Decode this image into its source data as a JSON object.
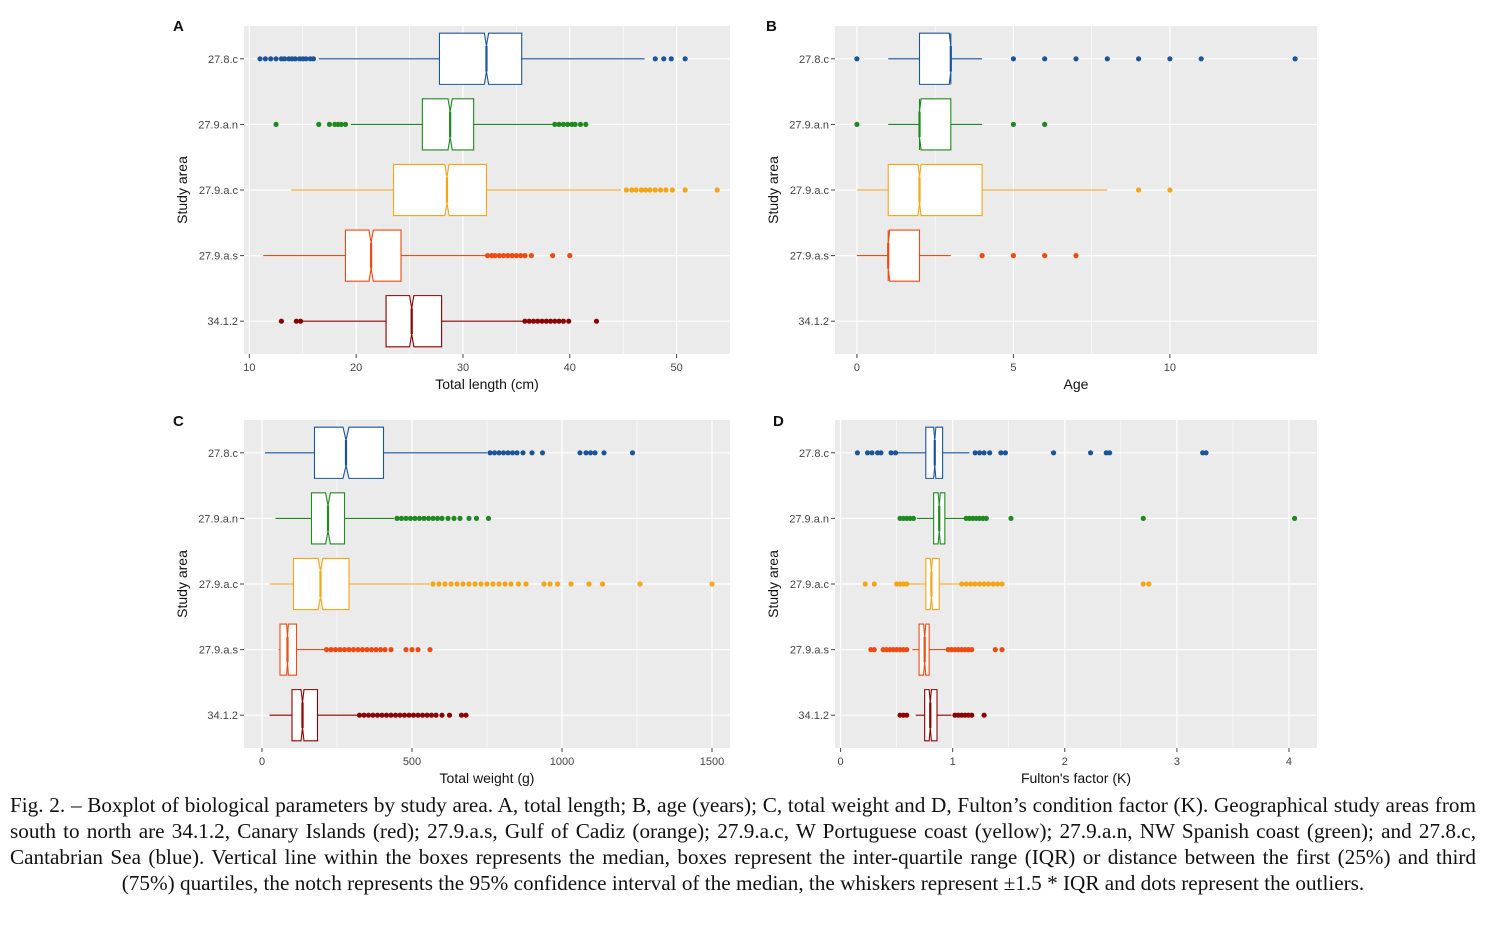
{
  "caption": {
    "text": "Fig. 2. – Boxplot of biological parameters by study area. A, total length; B, age (years); C, total weight and D, Fulton’s condition factor (K). Geographical study areas from south to north are 34.1.2, Canary Islands (red); 27.9.a.s, Gulf of Cadiz (orange); 27.9.a.c, W Portuguese coast (yellow); 27.9.a.n, NW Spanish coast (green); and 27.8.c, Cantabrian Sea (blue). Vertical line within the boxes represents the median, boxes represent the inter-quartile range (IQR) or distance between the first (25%) and third (75%) quartiles, the notch represents the 95% confidence interval of the median, the whiskers represent ±1.5 * IQR and dots represent the outliers."
  },
  "colors": {
    "27.8.c": "#1a5599",
    "27.9.a.n": "#1f8a1f",
    "27.9.a.c": "#f5a515",
    "27.9.a.s": "#ef4a12",
    "34.1.2": "#8b0000",
    "panel_bg": "#ebebeb",
    "grid": "#ffffff"
  },
  "chart_data": [
    {
      "panel": "A",
      "type": "boxplot",
      "xlabel": "Total length (cm)",
      "ylabel": "Study area",
      "xlim": [
        9.5,
        55
      ],
      "xticks": [
        10,
        20,
        30,
        40,
        50
      ],
      "categories": [
        "27.8.c",
        "27.9.a.n",
        "27.9.a.c",
        "27.9.a.s",
        "34.1.2"
      ],
      "series": [
        {
          "category": "27.8.c",
          "whisker_low": 16.5,
          "q1": 27.8,
          "median": 32.2,
          "q3": 35.5,
          "whisker_high": 47,
          "notch": [
            32.0,
            32.4
          ],
          "outliers": [
            11,
            11.5,
            12,
            12.5,
            13,
            13.3,
            13.7,
            14,
            14.3,
            14.7,
            15,
            15.3,
            15.7,
            16,
            48,
            48.8,
            49.5,
            50.8
          ]
        },
        {
          "category": "27.9.a.n",
          "whisker_low": 19.5,
          "q1": 26.2,
          "median": 28.8,
          "q3": 31.0,
          "whisker_high": 38.4,
          "notch": [
            28.6,
            29.0
          ],
          "outliers": [
            12.5,
            16.5,
            17.5,
            18,
            18.3,
            18.6,
            19,
            38.6,
            39,
            39.4,
            39.8,
            40.2,
            40.5,
            41,
            41.5
          ]
        },
        {
          "category": "27.9.a.c",
          "whisker_low": 13.9,
          "q1": 23.5,
          "median": 28.5,
          "q3": 32.2,
          "whisker_high": 44.8,
          "notch": [
            28.3,
            28.7
          ],
          "outliers": [
            45.3,
            45.8,
            46.2,
            46.7,
            47.1,
            47.5,
            48,
            48.5,
            49,
            49.6,
            50.8,
            53.8
          ]
        },
        {
          "category": "27.9.a.s",
          "whisker_low": 11.3,
          "q1": 19.0,
          "median": 21.4,
          "q3": 24.2,
          "whisker_high": 32.1,
          "notch": [
            21.2,
            21.6
          ],
          "outliers": [
            32.3,
            32.7,
            33,
            33.4,
            33.8,
            34.2,
            34.6,
            35,
            35.4,
            35.8,
            36.4,
            38.4,
            40
          ]
        },
        {
          "category": "34.1.2",
          "whisker_low": 15.0,
          "q1": 22.8,
          "median": 25.2,
          "q3": 28.0,
          "whisker_high": 35.6,
          "notch": [
            25.0,
            25.4
          ],
          "outliers": [
            13,
            14.4,
            14.8,
            35.8,
            36.2,
            36.6,
            37,
            37.4,
            37.8,
            38.2,
            38.6,
            39,
            39.4,
            39.9,
            42.5
          ]
        }
      ]
    },
    {
      "panel": "B",
      "type": "boxplot",
      "xlabel": "Age",
      "ylabel": "Study area",
      "xlim": [
        -0.7,
        14.7
      ],
      "xticks": [
        0,
        5,
        10
      ],
      "categories": [
        "27.8.c",
        "27.9.a.n",
        "27.9.a.c",
        "27.9.a.s",
        "34.1.2"
      ],
      "series": [
        {
          "category": "27.8.c",
          "whisker_low": 1,
          "q1": 2,
          "median": 3,
          "q3": 3,
          "whisker_high": 4,
          "notch": [
            2.95,
            3
          ],
          "outliers": [
            0,
            5,
            6,
            7,
            8,
            9,
            10,
            11,
            14
          ]
        },
        {
          "category": "27.9.a.n",
          "whisker_low": 1,
          "q1": 2,
          "median": 2,
          "q3": 3,
          "whisker_high": 4,
          "notch": [
            2,
            2.05
          ],
          "outliers": [
            0,
            5,
            6
          ]
        },
        {
          "category": "27.9.a.c",
          "whisker_low": 0,
          "q1": 1,
          "median": 2,
          "q3": 4,
          "whisker_high": 8,
          "notch": [
            1.95,
            2.05
          ],
          "outliers": [
            9,
            10
          ]
        },
        {
          "category": "27.9.a.s",
          "whisker_low": 0,
          "q1": 1,
          "median": 1,
          "q3": 2,
          "whisker_high": 3,
          "notch": [
            1,
            1.05
          ],
          "outliers": [
            4,
            5,
            6,
            7
          ]
        },
        {
          "category": "34.1.2",
          "empty": true
        }
      ]
    },
    {
      "panel": "C",
      "type": "boxplot",
      "xlabel": "Total weight (g)",
      "ylabel": "Study area",
      "xlim": [
        -60,
        1560
      ],
      "xticks": [
        0,
        500,
        1000,
        1500
      ],
      "categories": [
        "27.8.c",
        "27.9.a.n",
        "27.9.a.c",
        "27.9.a.s",
        "34.1.2"
      ],
      "series": [
        {
          "category": "27.8.c",
          "whisker_low": 10,
          "q1": 175,
          "median": 280,
          "q3": 405,
          "whisker_high": 750,
          "notch": [
            270,
            290
          ],
          "outliers": [
            760,
            775,
            790,
            805,
            820,
            835,
            850,
            870,
            900,
            935,
            1060,
            1080,
            1095,
            1110,
            1140,
            1235
          ]
        },
        {
          "category": "27.9.a.n",
          "whisker_low": 45,
          "q1": 165,
          "median": 220,
          "q3": 275,
          "whisker_high": 440,
          "notch": [
            212,
            228
          ],
          "outliers": [
            450,
            465,
            480,
            495,
            510,
            525,
            540,
            555,
            570,
            585,
            600,
            620,
            640,
            660,
            690,
            715,
            755
          ]
        },
        {
          "category": "27.9.a.c",
          "whisker_low": 25,
          "q1": 105,
          "median": 195,
          "q3": 290,
          "whisker_high": 560,
          "notch": [
            187,
            203
          ],
          "outliers": [
            570,
            590,
            610,
            630,
            650,
            670,
            690,
            710,
            730,
            750,
            770,
            790,
            810,
            830,
            855,
            880,
            940,
            960,
            985,
            1030,
            1090,
            1135,
            1260,
            1500
          ]
        },
        {
          "category": "27.9.a.s",
          "whisker_low": 55,
          "q1": 60,
          "median": 85,
          "q3": 115,
          "whisker_high": 210,
          "notch": [
            82,
            88
          ],
          "outliers": [
            215,
            230,
            245,
            260,
            275,
            290,
            305,
            320,
            335,
            350,
            365,
            380,
            395,
            410,
            430,
            480,
            500,
            520,
            560
          ]
        },
        {
          "category": "34.1.2",
          "whisker_low": 25,
          "q1": 100,
          "median": 135,
          "q3": 185,
          "whisker_high": 320,
          "notch": [
            130,
            140
          ],
          "outliers": [
            325,
            340,
            355,
            370,
            385,
            400,
            415,
            430,
            445,
            460,
            475,
            490,
            505,
            520,
            535,
            550,
            565,
            580,
            600,
            625,
            665,
            680
          ]
        }
      ]
    },
    {
      "panel": "D",
      "type": "boxplot",
      "xlabel": "Fulton's factor (K)",
      "ylabel": "Study area",
      "xlim": [
        -0.05,
        4.25
      ],
      "xticks": [
        0,
        1,
        2,
        3,
        4
      ],
      "categories": [
        "27.8.c",
        "27.9.a.n",
        "27.9.a.c",
        "27.9.a.s",
        "34.1.2"
      ],
      "series": [
        {
          "category": "27.8.c",
          "whisker_low": 0.5,
          "q1": 0.76,
          "median": 0.84,
          "q3": 0.91,
          "whisker_high": 1.15,
          "notch": [
            0.83,
            0.85
          ],
          "outliers": [
            0.15,
            0.24,
            0.28,
            0.33,
            0.36,
            0.45,
            0.49,
            1.2,
            1.24,
            1.28,
            1.33,
            1.43,
            1.47,
            1.9,
            2.23,
            2.37,
            2.4,
            3.23,
            3.26
          ]
        },
        {
          "category": "27.9.a.n",
          "whisker_low": 0.68,
          "q1": 0.83,
          "median": 0.88,
          "q3": 0.93,
          "whisker_high": 1.1,
          "notch": [
            0.87,
            0.89
          ],
          "outliers": [
            0.53,
            0.56,
            0.59,
            0.62,
            0.65,
            1.12,
            1.15,
            1.18,
            1.21,
            1.24,
            1.27,
            1.3,
            1.52,
            2.7,
            4.05
          ]
        },
        {
          "category": "27.9.a.c",
          "whisker_low": 0.6,
          "q1": 0.76,
          "median": 0.81,
          "q3": 0.88,
          "whisker_high": 1.06,
          "notch": [
            0.8,
            0.82
          ],
          "outliers": [
            0.22,
            0.3,
            0.5,
            0.53,
            0.56,
            0.59,
            1.08,
            1.12,
            1.16,
            1.2,
            1.24,
            1.28,
            1.32,
            1.36,
            1.4,
            1.44,
            2.7,
            2.75
          ]
        },
        {
          "category": "27.9.a.s",
          "whisker_low": 0.64,
          "q1": 0.7,
          "median": 0.75,
          "q3": 0.79,
          "whisker_high": 0.94,
          "notch": [
            0.74,
            0.76
          ],
          "outliers": [
            0.27,
            0.3,
            0.38,
            0.41,
            0.44,
            0.47,
            0.5,
            0.53,
            0.56,
            0.59,
            0.96,
            0.99,
            1.02,
            1.05,
            1.08,
            1.11,
            1.14,
            1.17,
            1.38,
            1.44
          ]
        },
        {
          "category": "34.1.2",
          "whisker_low": 0.67,
          "q1": 0.75,
          "median": 0.8,
          "q3": 0.86,
          "whisker_high": 0.99,
          "notch": [
            0.79,
            0.81
          ],
          "outliers": [
            0.53,
            0.56,
            0.59,
            1.02,
            1.05,
            1.08,
            1.11,
            1.14,
            1.17,
            1.28
          ]
        }
      ]
    }
  ]
}
